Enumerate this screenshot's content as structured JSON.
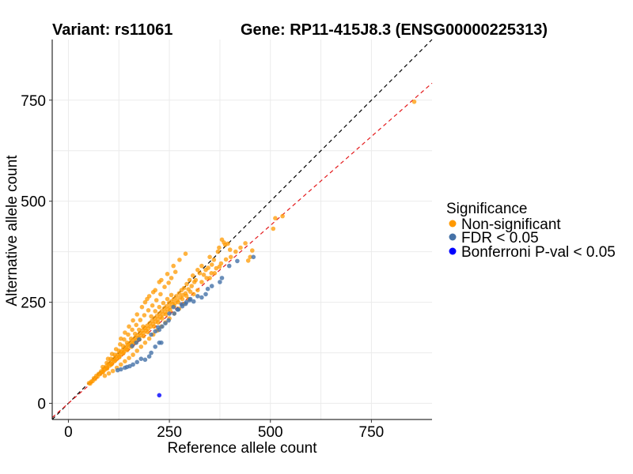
{
  "header": {
    "variant_label": "Variant: rs11061",
    "gene_label": "Gene: RP11-415J8.3 (ENSG00000225313)"
  },
  "colors": {
    "non_significant": "#FF9900",
    "fdr": "#4572A7",
    "bonferroni": "#0000FF",
    "diagonal": "#000000",
    "fit": "#E41A1C",
    "grid": "#EBEBEB"
  },
  "chart_data": {
    "type": "scatter",
    "xlabel": "Reference allele count",
    "ylabel": "Alternative allele count",
    "xlim": [
      -40,
      900
    ],
    "ylim": [
      -40,
      900
    ],
    "x_ticks": [
      0,
      250,
      500,
      750
    ],
    "y_ticks": [
      0,
      250,
      500,
      750
    ],
    "x_tick_labels": [
      "0",
      "250",
      "500",
      "750"
    ],
    "y_tick_labels": [
      "0",
      "250",
      "500",
      "750"
    ],
    "grid": true,
    "legend": {
      "title": "Significance",
      "placement": "right",
      "entries": [
        "Non-significant",
        "FDR < 0.05",
        "Bonferroni P-val < 0.05"
      ]
    },
    "reference_lines": [
      {
        "style": "dashed",
        "color": "#000000",
        "slope": 1.0,
        "intercept": 0
      },
      {
        "style": "dashed",
        "color": "#E41A1C",
        "slope": 0.88,
        "intercept": 0
      }
    ],
    "series": [
      {
        "name": "Non-significant",
        "points": [
          [
            856,
            746
          ],
          [
            530,
            463
          ],
          [
            512,
            458
          ],
          [
            507,
            432
          ],
          [
            455,
            378
          ],
          [
            450,
            362
          ],
          [
            445,
            353
          ],
          [
            400,
            380
          ],
          [
            395,
            395
          ],
          [
            388,
            392
          ],
          [
            385,
            398
          ],
          [
            380,
            405
          ],
          [
            373,
            385
          ],
          [
            370,
            375
          ],
          [
            360,
            355
          ],
          [
            355,
            343
          ],
          [
            350,
            362
          ],
          [
            346,
            335
          ],
          [
            340,
            330
          ],
          [
            335,
            318
          ],
          [
            330,
            340
          ],
          [
            325,
            322
          ],
          [
            320,
            330
          ],
          [
            315,
            305
          ],
          [
            312,
            300
          ],
          [
            308,
            316
          ],
          [
            305,
            290
          ],
          [
            300,
            305
          ],
          [
            297,
            282
          ],
          [
            293,
            295
          ],
          [
            290,
            272
          ],
          [
            286,
            285
          ],
          [
            283,
            268
          ],
          [
            280,
            280
          ],
          [
            277,
            262
          ],
          [
            274,
            272
          ],
          [
            270,
            255
          ],
          [
            267,
            265
          ],
          [
            264,
            248
          ],
          [
            261,
            258
          ],
          [
            258,
            245
          ],
          [
            255,
            252
          ],
          [
            252,
            238
          ],
          [
            249,
            248
          ],
          [
            246,
            232
          ],
          [
            243,
            240
          ],
          [
            240,
            226
          ],
          [
            237,
            235
          ],
          [
            234,
            220
          ],
          [
            231,
            228
          ],
          [
            228,
            214
          ],
          [
            225,
            222
          ],
          [
            222,
            208
          ],
          [
            219,
            216
          ],
          [
            216,
            202
          ],
          [
            213,
            210
          ],
          [
            210,
            196
          ],
          [
            207,
            204
          ],
          [
            204,
            190
          ],
          [
            201,
            198
          ],
          [
            198,
            185
          ],
          [
            195,
            192
          ],
          [
            192,
            180
          ],
          [
            189,
            186
          ],
          [
            186,
            174
          ],
          [
            183,
            180
          ],
          [
            180,
            168
          ],
          [
            177,
            174
          ],
          [
            174,
            162
          ],
          [
            171,
            168
          ],
          [
            168,
            156
          ],
          [
            165,
            162
          ],
          [
            162,
            150
          ],
          [
            159,
            156
          ],
          [
            156,
            145
          ],
          [
            153,
            150
          ],
          [
            150,
            140
          ],
          [
            147,
            145
          ],
          [
            144,
            134
          ],
          [
            141,
            139
          ],
          [
            138,
            128
          ],
          [
            135,
            133
          ],
          [
            132,
            122
          ],
          [
            129,
            127
          ],
          [
            126,
            116
          ],
          [
            123,
            121
          ],
          [
            120,
            110
          ],
          [
            117,
            115
          ],
          [
            114,
            104
          ],
          [
            111,
            109
          ],
          [
            108,
            98
          ],
          [
            105,
            103
          ],
          [
            102,
            93
          ],
          [
            99,
            97
          ],
          [
            96,
            88
          ],
          [
            93,
            91
          ],
          [
            90,
            83
          ],
          [
            87,
            85
          ],
          [
            84,
            77
          ],
          [
            81,
            79
          ],
          [
            78,
            72
          ],
          [
            75,
            73
          ],
          [
            72,
            66
          ],
          [
            69,
            68
          ],
          [
            66,
            60
          ],
          [
            63,
            62
          ],
          [
            60,
            55
          ],
          [
            57,
            54
          ],
          [
            54,
            49
          ],
          [
            51,
            50
          ],
          [
            190,
            250
          ],
          [
            200,
            265
          ],
          [
            215,
            280
          ],
          [
            225,
            300
          ],
          [
            210,
            275
          ],
          [
            195,
            258
          ],
          [
            182,
            238
          ],
          [
            170,
            220
          ],
          [
            160,
            205
          ],
          [
            150,
            190
          ],
          [
            140,
            175
          ],
          [
            130,
            160
          ],
          [
            230,
            305
          ],
          [
            245,
            320
          ],
          [
            260,
            340
          ],
          [
            275,
            355
          ],
          [
            290,
            370
          ],
          [
            265,
            325
          ],
          [
            255,
            310
          ],
          [
            248,
            298
          ],
          [
            238,
            288
          ],
          [
            228,
            270
          ],
          [
            218,
            255
          ],
          [
            208,
            242
          ],
          [
            198,
            230
          ],
          [
            188,
            218
          ],
          [
            178,
            206
          ],
          [
            168,
            194
          ],
          [
            158,
            182
          ],
          [
            148,
            170
          ],
          [
            138,
            158
          ],
          [
            128,
            146
          ],
          [
            118,
            134
          ],
          [
            108,
            122
          ],
          [
            98,
            110
          ],
          [
            250,
            210
          ],
          [
            262,
            222
          ],
          [
            274,
            234
          ],
          [
            286,
            246
          ],
          [
            298,
            258
          ],
          [
            310,
            270
          ],
          [
            320,
            280
          ],
          [
            240,
            200
          ],
          [
            230,
            190
          ],
          [
            220,
            180
          ],
          [
            210,
            170
          ],
          [
            200,
            160
          ],
          [
            190,
            150
          ],
          [
            180,
            140
          ],
          [
            170,
            130
          ],
          [
            160,
            120
          ],
          [
            150,
            112
          ],
          [
            140,
            104
          ],
          [
            130,
            96
          ],
          [
            120,
            88
          ],
          [
            110,
            80
          ],
          [
            100,
            74
          ],
          [
            90,
            68
          ],
          [
            205,
            215
          ],
          [
            215,
            228
          ],
          [
            225,
            238
          ],
          [
            235,
            248
          ],
          [
            245,
            258
          ],
          [
            255,
            268
          ],
          [
            185,
            190
          ],
          [
            175,
            182
          ],
          [
            165,
            172
          ],
          [
            155,
            160
          ],
          [
            145,
            150
          ],
          [
            135,
            142
          ],
          [
            125,
            130
          ],
          [
            115,
            120
          ],
          [
            105,
            110
          ],
          [
            95,
            100
          ],
          [
            85,
            90
          ],
          [
            212,
            190
          ],
          [
            222,
            200
          ],
          [
            232,
            210
          ],
          [
            242,
            220
          ],
          [
            252,
            230
          ],
          [
            262,
            240
          ],
          [
            272,
            250
          ],
          [
            282,
            258
          ],
          [
            292,
            266
          ],
          [
            302,
            276
          ],
          [
            196,
            176
          ],
          [
            186,
            166
          ],
          [
            176,
            158
          ],
          [
            166,
            150
          ],
          [
            156,
            140
          ],
          [
            146,
            132
          ],
          [
            136,
            124
          ],
          [
            126,
            114
          ],
          [
            116,
            106
          ],
          [
            106,
            96
          ],
          [
            96,
            86
          ],
          [
            86,
            78
          ],
          [
            330,
            300
          ],
          [
            342,
            310
          ],
          [
            354,
            322
          ],
          [
            366,
            334
          ],
          [
            378,
            346
          ],
          [
            390,
            356
          ],
          [
            402,
            362
          ],
          [
            414,
            375
          ],
          [
            426,
            385
          ],
          [
            438,
            396
          ],
          [
            350,
            310
          ],
          [
            362,
            322
          ],
          [
            374,
            338
          ]
        ]
      },
      {
        "name": "FDR < 0.05",
        "points": [
          [
            458,
            362
          ],
          [
            418,
            352
          ],
          [
            398,
            340
          ],
          [
            380,
            310
          ],
          [
            375,
            300
          ],
          [
            355,
            290
          ],
          [
            345,
            283
          ],
          [
            340,
            270
          ],
          [
            330,
            262
          ],
          [
            320,
            265
          ],
          [
            310,
            252
          ],
          [
            300,
            255
          ],
          [
            290,
            246
          ],
          [
            280,
            245
          ],
          [
            270,
            232
          ],
          [
            260,
            238
          ],
          [
            250,
            222
          ],
          [
            248,
            205
          ],
          [
            240,
            198
          ],
          [
            232,
            190
          ],
          [
            225,
            182
          ],
          [
            222,
            188
          ],
          [
            215,
            178
          ],
          [
            205,
            170
          ],
          [
            230,
            150
          ],
          [
            225,
            150
          ],
          [
            215,
            140
          ],
          [
            205,
            125
          ],
          [
            200,
            116
          ],
          [
            190,
            108
          ],
          [
            180,
            110
          ],
          [
            170,
            102
          ],
          [
            160,
            96
          ],
          [
            152,
            92
          ],
          [
            145,
            90
          ],
          [
            140,
            88
          ],
          [
            130,
            84
          ],
          [
            122,
            82
          ],
          [
            175,
            158
          ],
          [
            168,
            150
          ],
          [
            158,
            142
          ],
          [
            262,
            222
          ],
          [
            272,
            232
          ],
          [
            282,
            240
          ],
          [
            292,
            250
          ],
          [
            302,
            258
          ]
        ]
      },
      {
        "name": "Bonferroni P-val < 0.05",
        "points": [
          [
            225,
            20
          ]
        ]
      }
    ]
  }
}
